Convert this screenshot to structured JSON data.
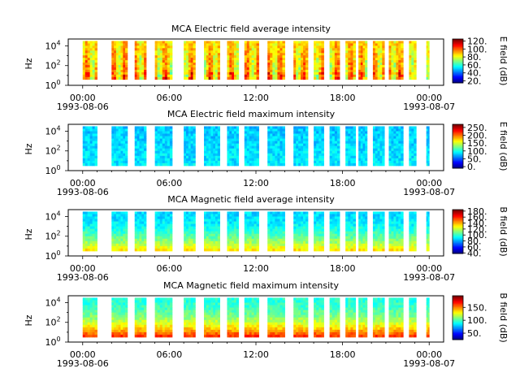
{
  "chart_data": [
    {
      "type": "heatmap",
      "title": "MCA  Electric field average intensity",
      "ylabel": "Hz",
      "colorbar_label": "E field (dB)",
      "colorbar_ticks": [
        "20.",
        "40.",
        "60.",
        "80.",
        "100.",
        "120."
      ],
      "colorbar_range": [
        15,
        125
      ],
      "xlim_hours": [
        -1,
        25
      ],
      "x_ticks": [
        "00:00",
        "06:00",
        "12:00",
        "18:00",
        "00:00"
      ],
      "x_dates": [
        "1993-08-06",
        "1993-08-07"
      ],
      "y_ticks": [
        "10^0",
        "10^2",
        "10^4"
      ],
      "ylim_log10": [
        0,
        4.7
      ],
      "data_ylim_log10": [
        0.6,
        4.5
      ],
      "data_segments_hours": [
        [
          0.0,
          1.0
        ],
        [
          2.0,
          3.1
        ],
        [
          3.6,
          4.4
        ],
        [
          5.0,
          6.2
        ],
        [
          7.0,
          7.8
        ],
        [
          8.4,
          9.5
        ],
        [
          10.0,
          10.8
        ],
        [
          11.2,
          12.2
        ],
        [
          12.8,
          14.0
        ],
        [
          14.6,
          15.6
        ],
        [
          16.0,
          16.7
        ],
        [
          17.1,
          17.8
        ],
        [
          18.2,
          18.9
        ],
        [
          19.1,
          19.7
        ],
        [
          20.1,
          20.9
        ],
        [
          21.2,
          22.2
        ],
        [
          22.6,
          23.1
        ],
        [
          23.8,
          24.0
        ]
      ],
      "dominant_value": 90
    },
    {
      "type": "heatmap",
      "title": "MCA  Electric field maximum intensity",
      "ylabel": "Hz",
      "colorbar_label": "E field (dB)",
      "colorbar_ticks": [
        "0.",
        "50.",
        "100.",
        "150.",
        "200.",
        "250."
      ],
      "colorbar_range": [
        -10,
        270
      ],
      "xlim_hours": [
        -1,
        25
      ],
      "x_ticks": [
        "00:00",
        "06:00",
        "12:00",
        "18:00",
        "00:00"
      ],
      "x_dates": [
        "1993-08-06",
        "1993-08-07"
      ],
      "y_ticks": [
        "10^0",
        "10^2",
        "10^4"
      ],
      "ylim_log10": [
        0,
        4.7
      ],
      "data_ylim_log10": [
        0.5,
        4.5
      ],
      "data_segments_hours": [
        [
          0.0,
          1.0
        ],
        [
          2.0,
          3.1
        ],
        [
          3.6,
          4.4
        ],
        [
          5.0,
          6.2
        ],
        [
          7.0,
          7.8
        ],
        [
          8.4,
          9.5
        ],
        [
          10.0,
          10.8
        ],
        [
          11.2,
          12.2
        ],
        [
          12.8,
          14.0
        ],
        [
          14.6,
          15.6
        ],
        [
          16.0,
          16.7
        ],
        [
          17.1,
          17.8
        ],
        [
          18.2,
          18.9
        ],
        [
          19.1,
          19.7
        ],
        [
          20.1,
          20.9
        ],
        [
          21.2,
          22.2
        ],
        [
          22.6,
          23.1
        ],
        [
          23.8,
          24.0
        ]
      ],
      "dominant_value": 90
    },
    {
      "type": "heatmap",
      "title": "MCA  Magnetic field average intensity",
      "ylabel": "Hz",
      "colorbar_label": "B field (dB)",
      "colorbar_ticks": [
        "40.",
        "60.",
        "80.",
        "100.",
        "120.",
        "140.",
        "160.",
        "180."
      ],
      "colorbar_range": [
        38,
        185
      ],
      "xlim_hours": [
        -1,
        25
      ],
      "x_ticks": [
        "00:00",
        "06:00",
        "12:00",
        "18:00",
        "00:00"
      ],
      "x_dates": [
        "1993-08-06",
        "1993-08-07"
      ],
      "y_ticks": [
        "10^0",
        "10^2",
        "10^4"
      ],
      "ylim_log10": [
        0,
        4.7
      ],
      "data_ylim_log10": [
        0.5,
        4.5
      ],
      "data_segments_hours": [
        [
          0.0,
          1.0
        ],
        [
          2.0,
          3.1
        ],
        [
          3.6,
          4.4
        ],
        [
          5.0,
          6.2
        ],
        [
          7.0,
          7.8
        ],
        [
          8.4,
          9.5
        ],
        [
          10.0,
          10.8
        ],
        [
          11.2,
          12.2
        ],
        [
          12.8,
          14.0
        ],
        [
          14.6,
          15.6
        ],
        [
          16.0,
          16.7
        ],
        [
          17.1,
          17.8
        ],
        [
          18.2,
          18.9
        ],
        [
          19.1,
          19.7
        ],
        [
          20.1,
          20.9
        ],
        [
          21.2,
          22.2
        ],
        [
          22.6,
          23.1
        ],
        [
          23.8,
          24.0
        ]
      ],
      "dominant_value": 110
    },
    {
      "type": "heatmap",
      "title": "MCA  Magnetic field maximum intensity",
      "ylabel": "Hz",
      "colorbar_label": "B field (dB)",
      "colorbar_ticks": [
        "50.",
        "100.",
        "150."
      ],
      "colorbar_range": [
        25,
        195
      ],
      "xlim_hours": [
        -1,
        25
      ],
      "x_ticks": [
        "00:00",
        "06:00",
        "12:00",
        "18:00",
        "00:00"
      ],
      "x_dates": [
        "1993-08-06",
        "1993-08-07"
      ],
      "y_ticks": [
        "10^0",
        "10^2",
        "10^4"
      ],
      "ylim_log10": [
        0,
        4.7
      ],
      "data_ylim_log10": [
        0.5,
        4.5
      ],
      "data_segments_hours": [
        [
          0.0,
          1.0
        ],
        [
          2.0,
          3.1
        ],
        [
          3.6,
          4.4
        ],
        [
          5.0,
          6.2
        ],
        [
          7.0,
          7.8
        ],
        [
          8.4,
          9.5
        ],
        [
          10.0,
          10.8
        ],
        [
          11.2,
          12.2
        ],
        [
          12.8,
          14.0
        ],
        [
          14.6,
          15.6
        ],
        [
          16.0,
          16.7
        ],
        [
          17.1,
          17.8
        ],
        [
          18.2,
          18.9
        ],
        [
          19.1,
          19.7
        ],
        [
          20.1,
          20.9
        ],
        [
          21.2,
          22.2
        ],
        [
          22.6,
          23.1
        ],
        [
          23.8,
          24.0
        ]
      ],
      "dominant_value": 120
    }
  ]
}
